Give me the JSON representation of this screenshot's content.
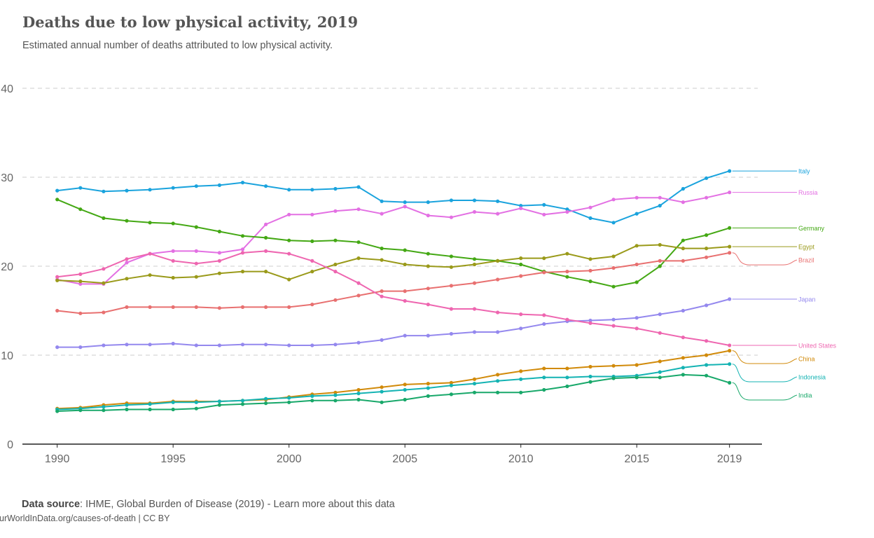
{
  "header": {
    "title": "Deaths due to low physical activity, 2019",
    "subtitle": "Estimated annual number of deaths attributed to low physical activity."
  },
  "footer": {
    "source_label": "Data source",
    "source_text": ": IHME, Global Burden of Disease (2019) - Learn more about this data",
    "url_text": "urWorldInData.org/causes-of-death | CC BY"
  },
  "chart_data": {
    "type": "line",
    "title": "Deaths due to low physical activity, 2019",
    "subtitle": "Estimated annual number of deaths attributed to low physical activity.",
    "xlabel": "",
    "ylabel": "",
    "x": [
      1990,
      1991,
      1992,
      1993,
      1994,
      1995,
      1996,
      1997,
      1998,
      1999,
      2000,
      2001,
      2002,
      2003,
      2004,
      2005,
      2006,
      2007,
      2008,
      2009,
      2010,
      2011,
      2012,
      2013,
      2014,
      2015,
      2016,
      2017,
      2018,
      2019
    ],
    "xlim": [
      1988.5,
      2020.4
    ],
    "ylim": [
      0,
      40
    ],
    "x_ticks": [
      1990,
      1995,
      2000,
      2005,
      2010,
      2015,
      2019
    ],
    "y_ticks": [
      0,
      10,
      20,
      30,
      40
    ],
    "grid": "horizontal dashed",
    "legend": "right, line-end labels",
    "series": [
      {
        "name": "Italy",
        "color": "#1aa3dd",
        "values": [
          28.5,
          28.8,
          28.4,
          28.5,
          28.6,
          28.8,
          29.0,
          29.1,
          29.4,
          29.0,
          28.6,
          28.6,
          28.7,
          28.9,
          27.3,
          27.2,
          27.2,
          27.4,
          27.4,
          27.3,
          26.8,
          26.9,
          26.4,
          25.4,
          24.9,
          25.9,
          26.8,
          28.7,
          29.9,
          30.7
        ]
      },
      {
        "name": "Russia",
        "color": "#e370e3",
        "values": [
          18.5,
          18.0,
          18.0,
          20.4,
          21.4,
          21.7,
          21.7,
          21.5,
          21.9,
          24.7,
          25.8,
          25.8,
          26.2,
          26.4,
          25.9,
          26.7,
          25.7,
          25.5,
          26.1,
          25.9,
          26.5,
          25.8,
          26.1,
          26.6,
          27.5,
          27.7,
          27.7,
          27.2,
          27.7,
          28.3
        ]
      },
      {
        "name": "Germany",
        "color": "#44a814",
        "values": [
          27.5,
          26.4,
          25.4,
          25.1,
          24.9,
          24.8,
          24.4,
          23.9,
          23.4,
          23.2,
          22.9,
          22.8,
          22.9,
          22.7,
          22.0,
          21.8,
          21.4,
          21.1,
          20.8,
          20.6,
          20.2,
          19.4,
          18.8,
          18.3,
          17.7,
          18.2,
          20.0,
          22.9,
          23.5,
          24.3
        ]
      },
      {
        "name": "Egypt",
        "color": "#9a9a1a",
        "values": [
          18.4,
          18.3,
          18.1,
          18.6,
          19.0,
          18.7,
          18.8,
          19.2,
          19.4,
          19.4,
          18.5,
          19.4,
          20.2,
          20.9,
          20.7,
          20.2,
          20.0,
          19.9,
          20.2,
          20.6,
          20.9,
          20.9,
          21.4,
          20.8,
          21.1,
          22.3,
          22.4,
          22.0,
          22.0,
          22.2
        ]
      },
      {
        "name": "Brazil",
        "color": "#e87070",
        "values": [
          15.0,
          14.7,
          14.8,
          15.4,
          15.4,
          15.4,
          15.4,
          15.3,
          15.4,
          15.4,
          15.4,
          15.7,
          16.2,
          16.7,
          17.2,
          17.2,
          17.5,
          17.8,
          18.1,
          18.5,
          18.9,
          19.3,
          19.4,
          19.5,
          19.8,
          20.2,
          20.6,
          20.6,
          21.0,
          21.5
        ]
      },
      {
        "name": "Japan",
        "color": "#9488ee",
        "values": [
          10.9,
          10.9,
          11.1,
          11.2,
          11.2,
          11.3,
          11.1,
          11.1,
          11.2,
          11.2,
          11.1,
          11.1,
          11.2,
          11.4,
          11.7,
          12.2,
          12.2,
          12.4,
          12.6,
          12.6,
          13.0,
          13.5,
          13.8,
          13.9,
          14.0,
          14.2,
          14.6,
          15.0,
          15.6,
          16.3
        ]
      },
      {
        "name": "United States",
        "color": "#ee66b0",
        "values": [
          18.8,
          19.1,
          19.7,
          20.8,
          21.4,
          20.6,
          20.3,
          20.6,
          21.5,
          21.7,
          21.4,
          20.6,
          19.4,
          18.1,
          16.6,
          16.1,
          15.7,
          15.2,
          15.2,
          14.8,
          14.6,
          14.5,
          14.0,
          13.6,
          13.3,
          13.0,
          12.5,
          12.0,
          11.6,
          11.1
        ]
      },
      {
        "name": "China",
        "color": "#d18a0a",
        "values": [
          4.0,
          4.1,
          4.4,
          4.6,
          4.6,
          4.8,
          4.8,
          4.8,
          4.9,
          5.0,
          5.3,
          5.6,
          5.8,
          6.1,
          6.4,
          6.7,
          6.8,
          6.9,
          7.3,
          7.8,
          8.2,
          8.5,
          8.5,
          8.7,
          8.8,
          8.9,
          9.3,
          9.7,
          10.0,
          10.5
        ]
      },
      {
        "name": "Indonesia",
        "color": "#14b3b3",
        "values": [
          3.9,
          4.0,
          4.2,
          4.4,
          4.5,
          4.7,
          4.7,
          4.8,
          4.9,
          5.1,
          5.2,
          5.4,
          5.5,
          5.7,
          5.9,
          6.1,
          6.3,
          6.6,
          6.8,
          7.1,
          7.3,
          7.5,
          7.5,
          7.6,
          7.6,
          7.7,
          8.1,
          8.6,
          8.9,
          9.0
        ]
      },
      {
        "name": "India",
        "color": "#18a86a",
        "values": [
          3.7,
          3.8,
          3.8,
          3.9,
          3.9,
          3.9,
          4.0,
          4.4,
          4.5,
          4.6,
          4.7,
          4.9,
          4.9,
          5.0,
          4.7,
          5.0,
          5.4,
          5.6,
          5.8,
          5.8,
          5.8,
          6.1,
          6.5,
          7.0,
          7.4,
          7.5,
          7.5,
          7.8,
          7.7,
          6.9
        ]
      }
    ]
  }
}
